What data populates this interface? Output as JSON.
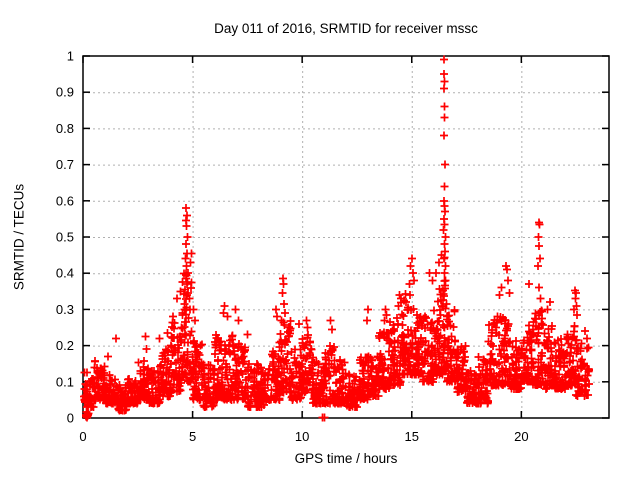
{
  "chart_data": {
    "type": "scatter",
    "title": "Day 011 of 2016, SRMTID for receiver mssc",
    "xlabel": "GPS time / hours",
    "ylabel": "SRMTID / TECUs",
    "xlim": [
      0,
      24
    ],
    "ylim": [
      0,
      1
    ],
    "xtick_values": [
      0,
      5,
      10,
      15,
      20
    ],
    "xtick_labels": [
      "0",
      "5",
      "10",
      "15",
      "20"
    ],
    "ytick_values": [
      0,
      0.1,
      0.2,
      0.3,
      0.4,
      0.5,
      0.6,
      0.7,
      0.8,
      0.9,
      1
    ],
    "ytick_labels": [
      "0",
      "0.1",
      "0.2",
      "0.3",
      "0.4",
      "0.5",
      "0.6",
      "0.7",
      "0.8",
      "0.9",
      "1"
    ],
    "grid": true,
    "grid_style": "dotted",
    "legend_position": "none",
    "series": [
      {
        "name": "SRMTID",
        "marker": "plus",
        "color": "#ff0000"
      }
    ],
    "colors": {
      "marker": "#ff0000",
      "grid": "#b0b0b0",
      "frame": "#000000",
      "text": "#000000",
      "background": "#ffffff"
    },
    "seed": 2016011,
    "noise_bands": [
      [
        0.05,
        0.5,
        0.03,
        0.13,
        45
      ],
      [
        0.5,
        1.0,
        0.05,
        0.16,
        55
      ],
      [
        1.0,
        1.5,
        0.04,
        0.12,
        50
      ],
      [
        1.5,
        2.0,
        0.02,
        0.1,
        50
      ],
      [
        2.0,
        2.5,
        0.04,
        0.11,
        50
      ],
      [
        2.5,
        3.0,
        0.05,
        0.16,
        55
      ],
      [
        3.0,
        3.5,
        0.04,
        0.13,
        50
      ],
      [
        3.5,
        4.0,
        0.06,
        0.19,
        55
      ],
      [
        4.0,
        4.5,
        0.07,
        0.27,
        55
      ],
      [
        4.5,
        5.0,
        0.1,
        0.4,
        60
      ],
      [
        5.0,
        5.5,
        0.05,
        0.22,
        55
      ],
      [
        5.5,
        6.0,
        0.03,
        0.15,
        50
      ],
      [
        6.0,
        6.5,
        0.05,
        0.23,
        55
      ],
      [
        6.5,
        7.0,
        0.05,
        0.23,
        55
      ],
      [
        7.0,
        7.5,
        0.05,
        0.21,
        50
      ],
      [
        7.5,
        8.0,
        0.03,
        0.15,
        50
      ],
      [
        8.0,
        8.5,
        0.03,
        0.14,
        50
      ],
      [
        8.5,
        9.0,
        0.05,
        0.21,
        55
      ],
      [
        9.0,
        9.5,
        0.07,
        0.27,
        55
      ],
      [
        9.5,
        10.0,
        0.05,
        0.19,
        50
      ],
      [
        10.0,
        10.5,
        0.07,
        0.23,
        55
      ],
      [
        10.5,
        11.0,
        0.04,
        0.16,
        50
      ],
      [
        11.0,
        11.5,
        0.04,
        0.2,
        50
      ],
      [
        11.5,
        12.0,
        0.04,
        0.16,
        50
      ],
      [
        12.0,
        12.5,
        0.03,
        0.13,
        50
      ],
      [
        12.5,
        13.0,
        0.05,
        0.17,
        50
      ],
      [
        13.0,
        13.5,
        0.06,
        0.18,
        50
      ],
      [
        13.5,
        14.0,
        0.08,
        0.24,
        55
      ],
      [
        14.0,
        14.5,
        0.09,
        0.28,
        55
      ],
      [
        14.5,
        15.0,
        0.12,
        0.36,
        60
      ],
      [
        15.0,
        15.5,
        0.12,
        0.32,
        60
      ],
      [
        15.5,
        16.0,
        0.1,
        0.28,
        55
      ],
      [
        16.0,
        16.4,
        0.12,
        0.36,
        45
      ],
      [
        16.4,
        16.6,
        0.13,
        0.46,
        35
      ],
      [
        16.6,
        17.0,
        0.1,
        0.3,
        50
      ],
      [
        17.0,
        17.5,
        0.07,
        0.2,
        55
      ],
      [
        17.5,
        18.0,
        0.04,
        0.13,
        55
      ],
      [
        18.0,
        18.5,
        0.04,
        0.17,
        55
      ],
      [
        18.5,
        19.0,
        0.09,
        0.28,
        55
      ],
      [
        19.0,
        19.5,
        0.09,
        0.28,
        55
      ],
      [
        19.5,
        20.0,
        0.08,
        0.22,
        50
      ],
      [
        20.0,
        20.5,
        0.1,
        0.26,
        55
      ],
      [
        20.5,
        21.0,
        0.09,
        0.3,
        60
      ],
      [
        21.0,
        21.5,
        0.08,
        0.26,
        55
      ],
      [
        21.5,
        22.0,
        0.08,
        0.22,
        55
      ],
      [
        22.0,
        22.5,
        0.09,
        0.26,
        55
      ],
      [
        22.5,
        23.1,
        0.06,
        0.22,
        60
      ]
    ],
    "spike_points": [
      [
        0.07,
        0.05
      ],
      [
        1.15,
        0.17
      ],
      [
        1.5,
        0.22
      ],
      [
        2.85,
        0.225
      ],
      [
        2.9,
        0.19
      ],
      [
        3.5,
        0.22
      ],
      [
        3.85,
        0.235
      ],
      [
        4.1,
        0.28
      ],
      [
        4.3,
        0.33
      ],
      [
        4.45,
        0.35
      ],
      [
        4.7,
        0.58
      ],
      [
        4.74,
        0.56
      ],
      [
        4.7,
        0.545
      ],
      [
        4.73,
        0.53
      ],
      [
        4.77,
        0.5
      ],
      [
        4.69,
        0.48
      ],
      [
        4.75,
        0.455
      ],
      [
        4.67,
        0.44
      ],
      [
        4.72,
        0.42
      ],
      [
        4.78,
        0.4
      ],
      [
        4.7,
        0.385
      ],
      [
        4.74,
        0.37
      ],
      [
        4.65,
        0.355
      ],
      [
        4.8,
        0.345
      ],
      [
        4.85,
        0.33
      ],
      [
        4.62,
        0.315
      ],
      [
        4.88,
        0.3
      ],
      [
        4.9,
        0.43
      ],
      [
        4.95,
        0.455
      ],
      [
        5.05,
        0.3
      ],
      [
        5.1,
        0.27
      ],
      [
        6.45,
        0.31
      ],
      [
        6.4,
        0.29
      ],
      [
        6.6,
        0.28
      ],
      [
        6.95,
        0.3
      ],
      [
        7.1,
        0.27
      ],
      [
        7.5,
        0.23
      ],
      [
        8.8,
        0.3
      ],
      [
        8.85,
        0.28
      ],
      [
        9.12,
        0.385
      ],
      [
        9.15,
        0.37
      ],
      [
        9.1,
        0.345
      ],
      [
        9.18,
        0.315
      ],
      [
        9.22,
        0.29
      ],
      [
        9.05,
        0.27
      ],
      [
        9.85,
        0.26
      ],
      [
        10.2,
        0.27
      ],
      [
        10.25,
        0.25
      ],
      [
        11.3,
        0.27
      ],
      [
        11.35,
        0.245
      ],
      [
        12.95,
        0.27
      ],
      [
        13.0,
        0.3
      ],
      [
        13.75,
        0.27
      ],
      [
        13.8,
        0.3
      ],
      [
        13.85,
        0.285
      ],
      [
        14.4,
        0.31
      ],
      [
        14.45,
        0.34
      ],
      [
        14.5,
        0.33
      ],
      [
        14.9,
        0.37
      ],
      [
        14.95,
        0.42
      ],
      [
        15.0,
        0.44
      ],
      [
        15.05,
        0.4
      ],
      [
        15.1,
        0.38
      ],
      [
        15.8,
        0.4
      ],
      [
        15.95,
        0.38
      ],
      [
        16.1,
        0.4
      ],
      [
        16.25,
        0.43
      ],
      [
        16.35,
        0.45
      ],
      [
        16.48,
        0.99
      ],
      [
        16.48,
        0.95
      ],
      [
        16.5,
        0.93
      ],
      [
        16.47,
        0.91
      ],
      [
        16.49,
        0.86
      ],
      [
        16.5,
        0.83
      ],
      [
        16.48,
        0.78
      ],
      [
        16.51,
        0.7
      ],
      [
        16.49,
        0.64
      ],
      [
        16.47,
        0.6
      ],
      [
        16.5,
        0.585
      ],
      [
        16.52,
        0.57
      ],
      [
        16.48,
        0.55
      ],
      [
        16.5,
        0.535
      ],
      [
        16.46,
        0.52
      ],
      [
        16.53,
        0.5
      ],
      [
        16.49,
        0.48
      ],
      [
        16.51,
        0.46
      ],
      [
        16.47,
        0.44
      ],
      [
        16.54,
        0.42
      ],
      [
        16.5,
        0.4
      ],
      [
        16.55,
        0.38
      ],
      [
        19.0,
        0.34
      ],
      [
        19.1,
        0.36
      ],
      [
        19.3,
        0.42
      ],
      [
        19.35,
        0.41
      ],
      [
        19.4,
        0.38
      ],
      [
        19.45,
        0.345
      ],
      [
        20.35,
        0.37
      ],
      [
        20.8,
        0.54
      ],
      [
        20.83,
        0.535
      ],
      [
        20.78,
        0.5
      ],
      [
        20.81,
        0.475
      ],
      [
        20.85,
        0.44
      ],
      [
        20.76,
        0.42
      ],
      [
        20.8,
        0.36
      ],
      [
        20.88,
        0.33
      ],
      [
        21.2,
        0.3
      ],
      [
        21.3,
        0.32
      ],
      [
        22.4,
        0.3
      ],
      [
        22.45,
        0.352
      ],
      [
        22.5,
        0.345
      ],
      [
        22.48,
        0.33
      ],
      [
        22.52,
        0.31
      ],
      [
        22.55,
        0.285
      ],
      [
        22.9,
        0.24
      ],
      [
        23.0,
        0.22
      ]
    ],
    "zero_points": [
      [
        0.13,
        0.008
      ],
      [
        0.14,
        0.004
      ],
      [
        0.16,
        0.016
      ],
      [
        0.17,
        0.01
      ],
      [
        0.19,
        0.002
      ],
      [
        0.2,
        0.006
      ],
      [
        0.22,
        0.008
      ],
      [
        0.23,
        0.013
      ],
      [
        0.25,
        0.012
      ],
      [
        10.93,
        0.001
      ],
      [
        11.03,
        0.001
      ]
    ]
  }
}
